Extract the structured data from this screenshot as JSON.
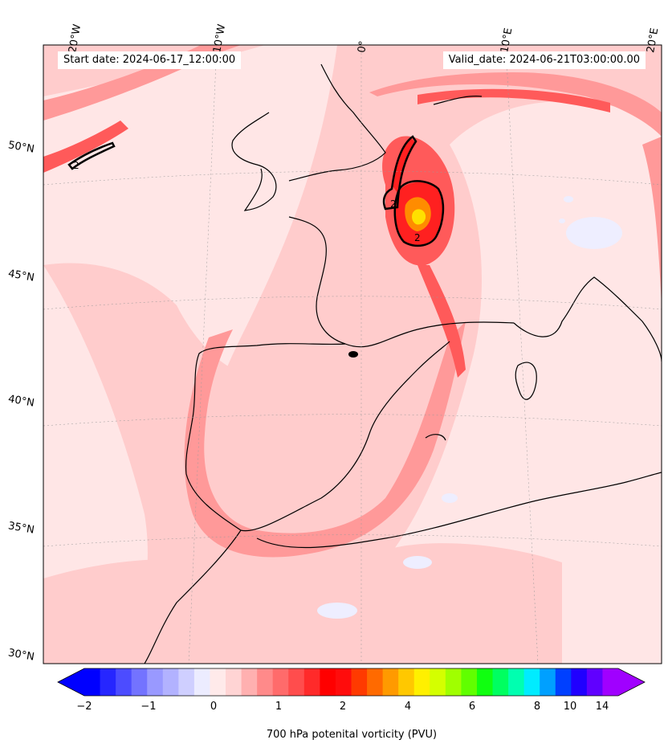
{
  "header": {
    "start_date": "Start date: 2024-06-17_12:00:00",
    "valid_date": "Valid_date: 2024-06-21T03:00:00.00"
  },
  "longitude_labels": [
    "20°W",
    "10°W",
    "0°",
    "10°E",
    "20°E"
  ],
  "latitude_labels": [
    "50°N",
    "45°N",
    "40°N",
    "35°N",
    "30°N"
  ],
  "contour_labels": [
    "2",
    "2",
    "2"
  ],
  "colorbar": {
    "label": "700 hPa potenital vorticity (PVU)",
    "tick_labels": [
      "−2",
      "−1",
      "0",
      "1",
      "2",
      "4",
      "6",
      "8",
      "10",
      "14"
    ],
    "colors": [
      "#0000ff",
      "#2626ff",
      "#4c4cff",
      "#7373ff",
      "#9999ff",
      "#b2b2ff",
      "#cfcfff",
      "#ececff",
      "#ffeaea",
      "#ffd4d4",
      "#ffb0b0",
      "#ff8a8a",
      "#ff6b6b",
      "#ff4d4d",
      "#ff2a2a",
      "#ff0000",
      "#ff0c0c",
      "#ff3a00",
      "#ff6a00",
      "#ff9a00",
      "#ffc800",
      "#fff000",
      "#d4ff00",
      "#a0ff00",
      "#60ff00",
      "#10ff10",
      "#00ff60",
      "#00ffb0",
      "#00ecff",
      "#00a0ff",
      "#0040ff",
      "#2000ff",
      "#6000ff",
      "#a000ff"
    ]
  },
  "fields": {
    "background": "#ffe6e6",
    "ocean_band": "#ffcccc",
    "jet": "#ff9999",
    "strong": "#ff5a5a",
    "core_red": "#ff2020",
    "core_orange": "#ff8c00",
    "core_yellow": "#ffe000",
    "negative": "#eeeeff",
    "coastline": "#000000"
  }
}
